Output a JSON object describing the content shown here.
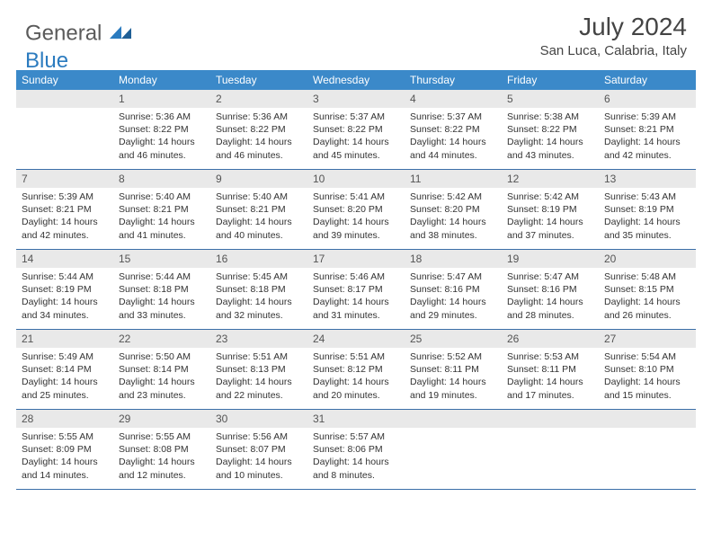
{
  "brand": {
    "part1": "General",
    "part2": "Blue"
  },
  "title": "July 2024",
  "location": "San Luca, Calabria, Italy",
  "colors": {
    "header_bg": "#3b89c9",
    "header_text": "#ffffff",
    "daynum_bg": "#e9e9e9",
    "week_border": "#3b6fa8",
    "brand_gray": "#5a5a5a",
    "brand_blue": "#2b7bbf",
    "text": "#333333",
    "background": "#ffffff"
  },
  "typography": {
    "month_title_fontsize": 28,
    "location_fontsize": 15,
    "dayheader_fontsize": 12,
    "daynum_fontsize": 12,
    "cell_fontsize": 10.5
  },
  "day_headers": [
    "Sunday",
    "Monday",
    "Tuesday",
    "Wednesday",
    "Thursday",
    "Friday",
    "Saturday"
  ],
  "weeks": [
    [
      {
        "n": "",
        "sr": "",
        "ss": "",
        "dl": ""
      },
      {
        "n": "1",
        "sr": "Sunrise: 5:36 AM",
        "ss": "Sunset: 8:22 PM",
        "dl": "Daylight: 14 hours and 46 minutes."
      },
      {
        "n": "2",
        "sr": "Sunrise: 5:36 AM",
        "ss": "Sunset: 8:22 PM",
        "dl": "Daylight: 14 hours and 46 minutes."
      },
      {
        "n": "3",
        "sr": "Sunrise: 5:37 AM",
        "ss": "Sunset: 8:22 PM",
        "dl": "Daylight: 14 hours and 45 minutes."
      },
      {
        "n": "4",
        "sr": "Sunrise: 5:37 AM",
        "ss": "Sunset: 8:22 PM",
        "dl": "Daylight: 14 hours and 44 minutes."
      },
      {
        "n": "5",
        "sr": "Sunrise: 5:38 AM",
        "ss": "Sunset: 8:22 PM",
        "dl": "Daylight: 14 hours and 43 minutes."
      },
      {
        "n": "6",
        "sr": "Sunrise: 5:39 AM",
        "ss": "Sunset: 8:21 PM",
        "dl": "Daylight: 14 hours and 42 minutes."
      }
    ],
    [
      {
        "n": "7",
        "sr": "Sunrise: 5:39 AM",
        "ss": "Sunset: 8:21 PM",
        "dl": "Daylight: 14 hours and 42 minutes."
      },
      {
        "n": "8",
        "sr": "Sunrise: 5:40 AM",
        "ss": "Sunset: 8:21 PM",
        "dl": "Daylight: 14 hours and 41 minutes."
      },
      {
        "n": "9",
        "sr": "Sunrise: 5:40 AM",
        "ss": "Sunset: 8:21 PM",
        "dl": "Daylight: 14 hours and 40 minutes."
      },
      {
        "n": "10",
        "sr": "Sunrise: 5:41 AM",
        "ss": "Sunset: 8:20 PM",
        "dl": "Daylight: 14 hours and 39 minutes."
      },
      {
        "n": "11",
        "sr": "Sunrise: 5:42 AM",
        "ss": "Sunset: 8:20 PM",
        "dl": "Daylight: 14 hours and 38 minutes."
      },
      {
        "n": "12",
        "sr": "Sunrise: 5:42 AM",
        "ss": "Sunset: 8:19 PM",
        "dl": "Daylight: 14 hours and 37 minutes."
      },
      {
        "n": "13",
        "sr": "Sunrise: 5:43 AM",
        "ss": "Sunset: 8:19 PM",
        "dl": "Daylight: 14 hours and 35 minutes."
      }
    ],
    [
      {
        "n": "14",
        "sr": "Sunrise: 5:44 AM",
        "ss": "Sunset: 8:19 PM",
        "dl": "Daylight: 14 hours and 34 minutes."
      },
      {
        "n": "15",
        "sr": "Sunrise: 5:44 AM",
        "ss": "Sunset: 8:18 PM",
        "dl": "Daylight: 14 hours and 33 minutes."
      },
      {
        "n": "16",
        "sr": "Sunrise: 5:45 AM",
        "ss": "Sunset: 8:18 PM",
        "dl": "Daylight: 14 hours and 32 minutes."
      },
      {
        "n": "17",
        "sr": "Sunrise: 5:46 AM",
        "ss": "Sunset: 8:17 PM",
        "dl": "Daylight: 14 hours and 31 minutes."
      },
      {
        "n": "18",
        "sr": "Sunrise: 5:47 AM",
        "ss": "Sunset: 8:16 PM",
        "dl": "Daylight: 14 hours and 29 minutes."
      },
      {
        "n": "19",
        "sr": "Sunrise: 5:47 AM",
        "ss": "Sunset: 8:16 PM",
        "dl": "Daylight: 14 hours and 28 minutes."
      },
      {
        "n": "20",
        "sr": "Sunrise: 5:48 AM",
        "ss": "Sunset: 8:15 PM",
        "dl": "Daylight: 14 hours and 26 minutes."
      }
    ],
    [
      {
        "n": "21",
        "sr": "Sunrise: 5:49 AM",
        "ss": "Sunset: 8:14 PM",
        "dl": "Daylight: 14 hours and 25 minutes."
      },
      {
        "n": "22",
        "sr": "Sunrise: 5:50 AM",
        "ss": "Sunset: 8:14 PM",
        "dl": "Daylight: 14 hours and 23 minutes."
      },
      {
        "n": "23",
        "sr": "Sunrise: 5:51 AM",
        "ss": "Sunset: 8:13 PM",
        "dl": "Daylight: 14 hours and 22 minutes."
      },
      {
        "n": "24",
        "sr": "Sunrise: 5:51 AM",
        "ss": "Sunset: 8:12 PM",
        "dl": "Daylight: 14 hours and 20 minutes."
      },
      {
        "n": "25",
        "sr": "Sunrise: 5:52 AM",
        "ss": "Sunset: 8:11 PM",
        "dl": "Daylight: 14 hours and 19 minutes."
      },
      {
        "n": "26",
        "sr": "Sunrise: 5:53 AM",
        "ss": "Sunset: 8:11 PM",
        "dl": "Daylight: 14 hours and 17 minutes."
      },
      {
        "n": "27",
        "sr": "Sunrise: 5:54 AM",
        "ss": "Sunset: 8:10 PM",
        "dl": "Daylight: 14 hours and 15 minutes."
      }
    ],
    [
      {
        "n": "28",
        "sr": "Sunrise: 5:55 AM",
        "ss": "Sunset: 8:09 PM",
        "dl": "Daylight: 14 hours and 14 minutes."
      },
      {
        "n": "29",
        "sr": "Sunrise: 5:55 AM",
        "ss": "Sunset: 8:08 PM",
        "dl": "Daylight: 14 hours and 12 minutes."
      },
      {
        "n": "30",
        "sr": "Sunrise: 5:56 AM",
        "ss": "Sunset: 8:07 PM",
        "dl": "Daylight: 14 hours and 10 minutes."
      },
      {
        "n": "31",
        "sr": "Sunrise: 5:57 AM",
        "ss": "Sunset: 8:06 PM",
        "dl": "Daylight: 14 hours and 8 minutes."
      },
      {
        "n": "",
        "sr": "",
        "ss": "",
        "dl": ""
      },
      {
        "n": "",
        "sr": "",
        "ss": "",
        "dl": ""
      },
      {
        "n": "",
        "sr": "",
        "ss": "",
        "dl": ""
      }
    ]
  ]
}
